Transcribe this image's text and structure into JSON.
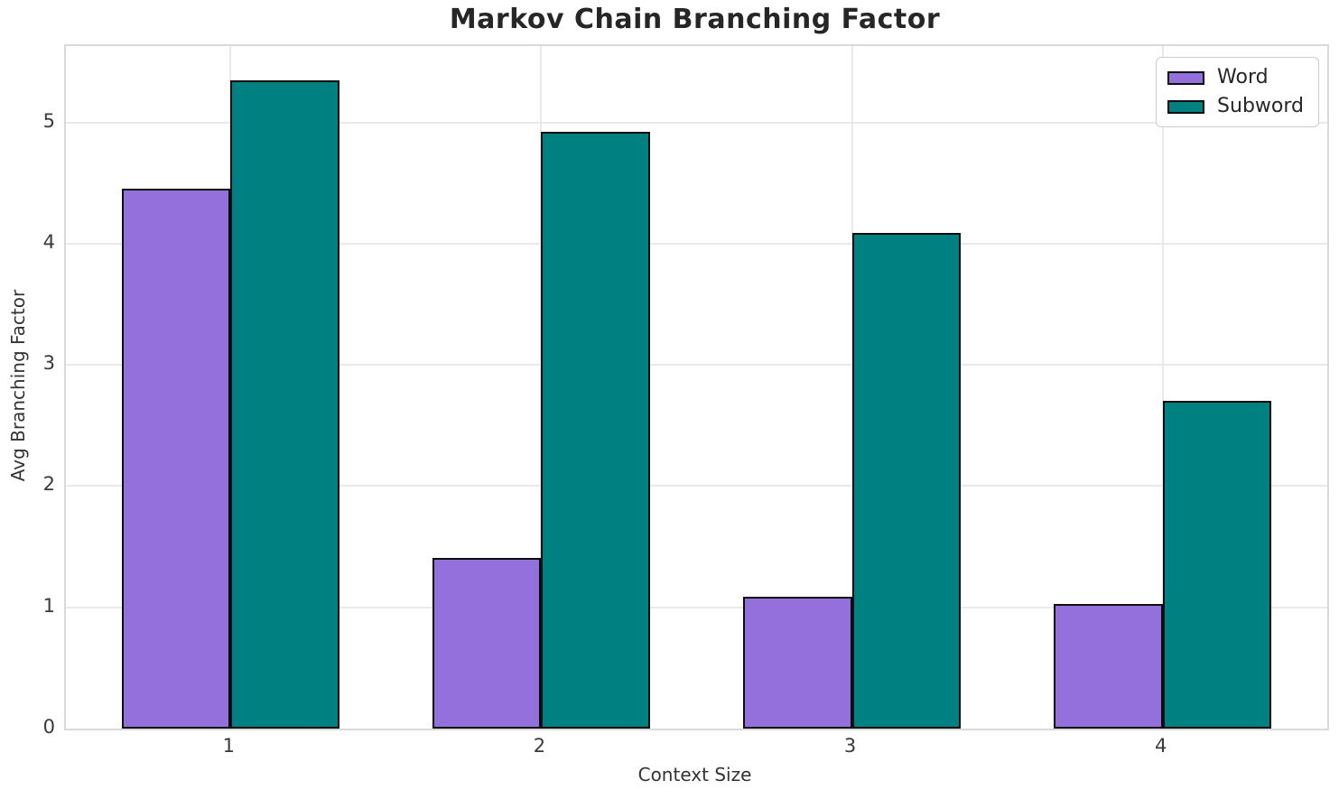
{
  "chart_data": {
    "type": "bar",
    "title": "Markov Chain Branching Factor",
    "xlabel": "Context Size",
    "ylabel": "Avg Branching Factor",
    "categories": [
      "1",
      "2",
      "3",
      "4"
    ],
    "series": [
      {
        "name": "Word",
        "color": "#9370DB",
        "values": [
          4.45,
          1.41,
          1.09,
          1.03
        ]
      },
      {
        "name": "Subword",
        "color": "#008080",
        "values": [
          5.35,
          4.92,
          4.09,
          2.7
        ]
      }
    ],
    "yticks": [
      "0",
      "1",
      "2",
      "3",
      "4",
      "5"
    ],
    "ylim": [
      0,
      5.63
    ],
    "grid": true,
    "legend_position": "upper right",
    "bar_edge_color": "#0d0d0d",
    "grid_color": "#e9e9e9",
    "spine_color": "#d9d9d9",
    "background_color": "#ffffff"
  }
}
